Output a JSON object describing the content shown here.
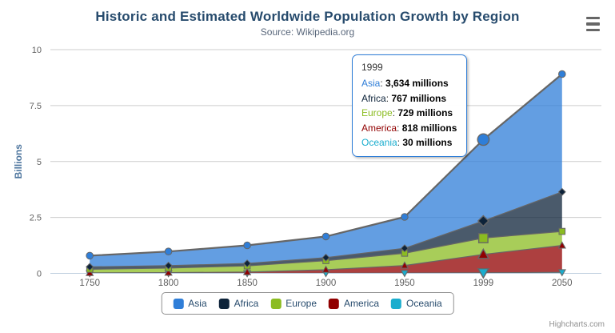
{
  "chart_data": {
    "type": "area",
    "stacking": "normal",
    "title": "Historic and Estimated Worldwide Population Growth by Region",
    "subtitle": "Source: Wikipedia.org",
    "xlabel": "",
    "ylabel": "Billions",
    "categories": [
      "1750",
      "1800",
      "1850",
      "1900",
      "1950",
      "1999",
      "2050"
    ],
    "values_unit": "millions",
    "ylim": [
      0,
      10
    ],
    "yticks": [
      0,
      2.5,
      5,
      7.5,
      10
    ],
    "ytick_labels": [
      "0",
      "2.5",
      "5",
      "7.5",
      "10"
    ],
    "grid": "horizontal",
    "legend_position": "bottom",
    "fill_opacity": 0.75,
    "series": [
      {
        "name": "Asia",
        "color": "#2f7ed8",
        "marker": "circle",
        "values": [
          502,
          635,
          809,
          947,
          1402,
          3634,
          5268
        ]
      },
      {
        "name": "Africa",
        "color": "#0d233a",
        "marker": "diamond",
        "values": [
          106,
          107,
          111,
          133,
          221,
          767,
          1766
        ]
      },
      {
        "name": "Europe",
        "color": "#8bbc21",
        "marker": "square",
        "values": [
          163,
          203,
          276,
          408,
          547,
          729,
          628
        ]
      },
      {
        "name": "America",
        "color": "#910000",
        "marker": "triangle",
        "values": [
          18,
          31,
          54,
          156,
          339,
          818,
          1201
        ]
      },
      {
        "name": "Oceania",
        "color": "#1aadce",
        "marker": "triangle-down",
        "values": [
          2,
          2,
          2,
          6,
          13,
          30,
          46
        ]
      }
    ],
    "hover": {
      "category": "1999",
      "index": 5,
      "series": "Asia"
    }
  },
  "tooltip": {
    "header": "1999",
    "rows": [
      {
        "name": "Asia",
        "value": "3,634 millions",
        "color": "#2f7ed8"
      },
      {
        "name": "Africa",
        "value": "767 millions",
        "color": "#0d233a"
      },
      {
        "name": "Europe",
        "value": "729 millions",
        "color": "#8bbc21"
      },
      {
        "name": "America",
        "value": "818 millions",
        "color": "#910000"
      },
      {
        "name": "Oceania",
        "value": "30 millions",
        "color": "#1aadce"
      }
    ]
  },
  "colors": {
    "title": "#274b6d",
    "subtitle": "#59677b",
    "axis_label": "#606060",
    "y_axis_title": "#4d759e",
    "grid": "#cccccc",
    "axis_line": "#c0d0e0",
    "series_outline": "#666666",
    "legend_text": "#274b6d",
    "legend_border": "#909090",
    "tooltip_border": "#2f7ed8",
    "tooltip_header": "#333333",
    "menu_icon": "#666666",
    "credits": "#909090"
  },
  "credits": {
    "label": "Highcharts.com"
  },
  "controls": {
    "context_menu_icon": "hamburger-icon"
  }
}
